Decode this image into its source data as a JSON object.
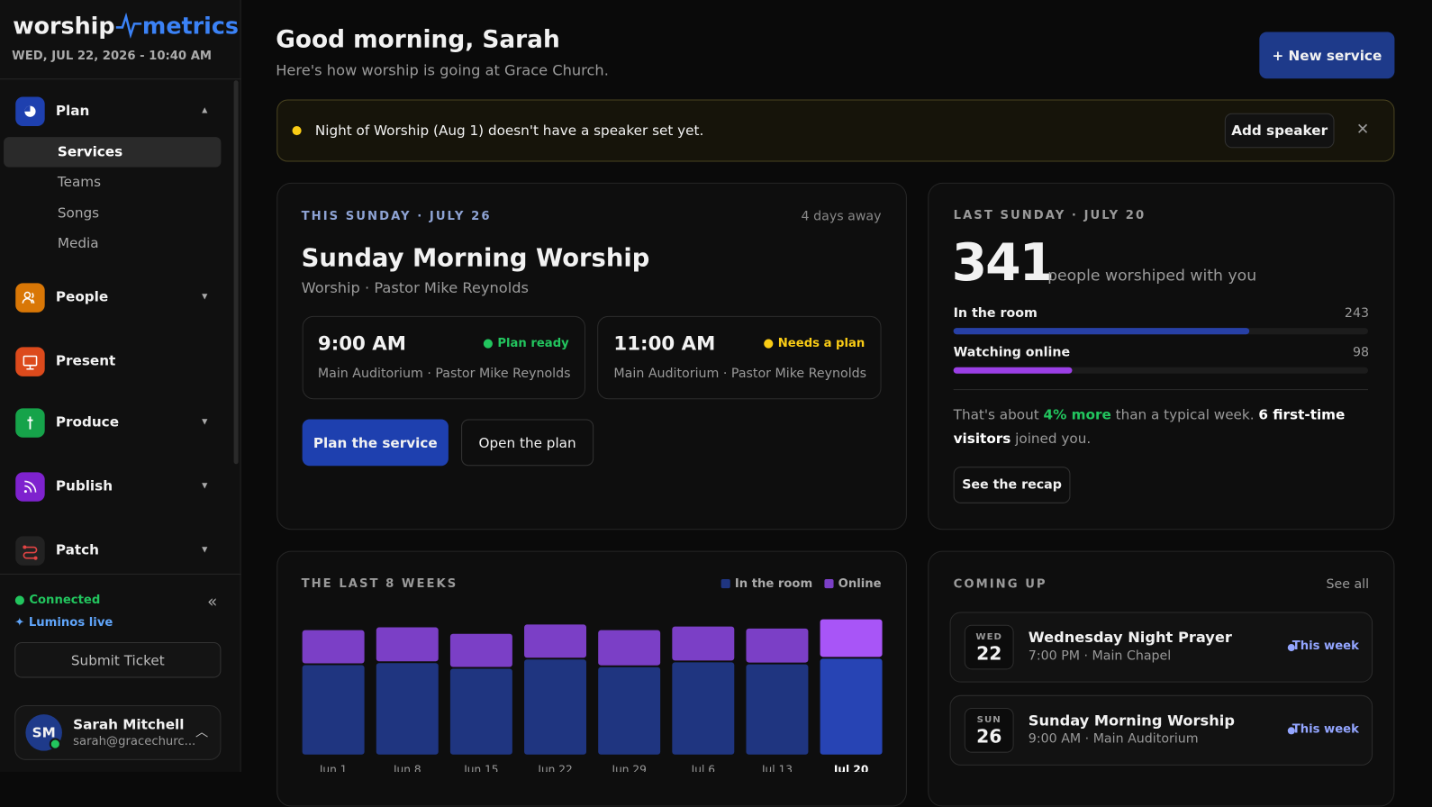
{
  "sidebar": {
    "logo": {
      "left": "worship",
      "right": "metrics"
    },
    "datetime": "WED, JUL 22, 2026 - 10:40 AM",
    "nav": [
      {
        "label": "Plan",
        "children": [
          "Services",
          "Teams",
          "Songs",
          "Media"
        ]
      },
      {
        "label": "People"
      },
      {
        "label": "Present"
      },
      {
        "label": "Produce"
      },
      {
        "label": "Publish"
      },
      {
        "label": "Patch"
      }
    ],
    "status": {
      "connected": "Connected",
      "live": "Luminos live"
    },
    "submit": "Submit Ticket",
    "user": {
      "initials": "SM",
      "name": "Sarah Mitchell",
      "email": "sarah@gracechurc..."
    }
  },
  "header": {
    "greeting": "Good morning, Sarah",
    "subtitle": "Here's how worship is going at Grace Church.",
    "button": "+ New service"
  },
  "alert": {
    "text": "Night of Worship (Aug 1) doesn't have a speaker set yet.",
    "button": "Add speaker"
  },
  "this_sunday": {
    "label": "THIS SUNDAY · JULY 26",
    "countdown": "4 days away",
    "title": "Sunday Morning Worship",
    "subtitle": "Worship · Pastor Mike Reynolds",
    "services": [
      {
        "time": "9:00 AM",
        "status": "Plan ready",
        "location": "Main Auditorium · Pastor Mike Reynolds"
      },
      {
        "time": "11:00 AM",
        "status": "Needs a plan",
        "location": "Main Auditorium · Pastor Mike Reynolds"
      }
    ],
    "primary_button": "Plan the service",
    "secondary_button": "Open the plan"
  },
  "last_sunday": {
    "label": "LAST SUNDAY · JULY 20",
    "total": 341,
    "total_caption": "people worshiped with you",
    "in_room": {
      "label": "In the room",
      "value": 243
    },
    "online": {
      "label": "Watching online",
      "value": 98
    },
    "summary": [
      "That's about ",
      "4% more",
      " than a typical week. ",
      "6 first-time visitors",
      " joined you."
    ],
    "button": "See the recap"
  },
  "chart_data": {
    "type": "bar",
    "stacked": true,
    "title": "THE LAST 8 WEEKS",
    "categories": [
      "Jun 1",
      "Jun 8",
      "Jun 15",
      "Jun 22",
      "Jun 29",
      "Jul 6",
      "Jul 13",
      "Jul 20"
    ],
    "series": [
      {
        "name": "In the room",
        "color": "#1f3580",
        "values": [
          227,
          232,
          218,
          241,
          222,
          234,
          229,
          243
        ]
      },
      {
        "name": "Online",
        "color": "#7b3fc6",
        "values": [
          87,
          89,
          87,
          87,
          92,
          89,
          89,
          98
        ]
      }
    ]
  },
  "coming_up": {
    "title": "COMING UP",
    "link": "See all",
    "events": [
      {
        "weekday": "WED",
        "day": "22",
        "title": "Wednesday Night Prayer",
        "detail": "7:00 PM · Main Chapel",
        "tag": "This week"
      },
      {
        "weekday": "SUN",
        "day": "26",
        "title": "Sunday Morning Worship",
        "detail": "9:00 AM · Main Auditorium",
        "tag": "This week"
      }
    ]
  }
}
